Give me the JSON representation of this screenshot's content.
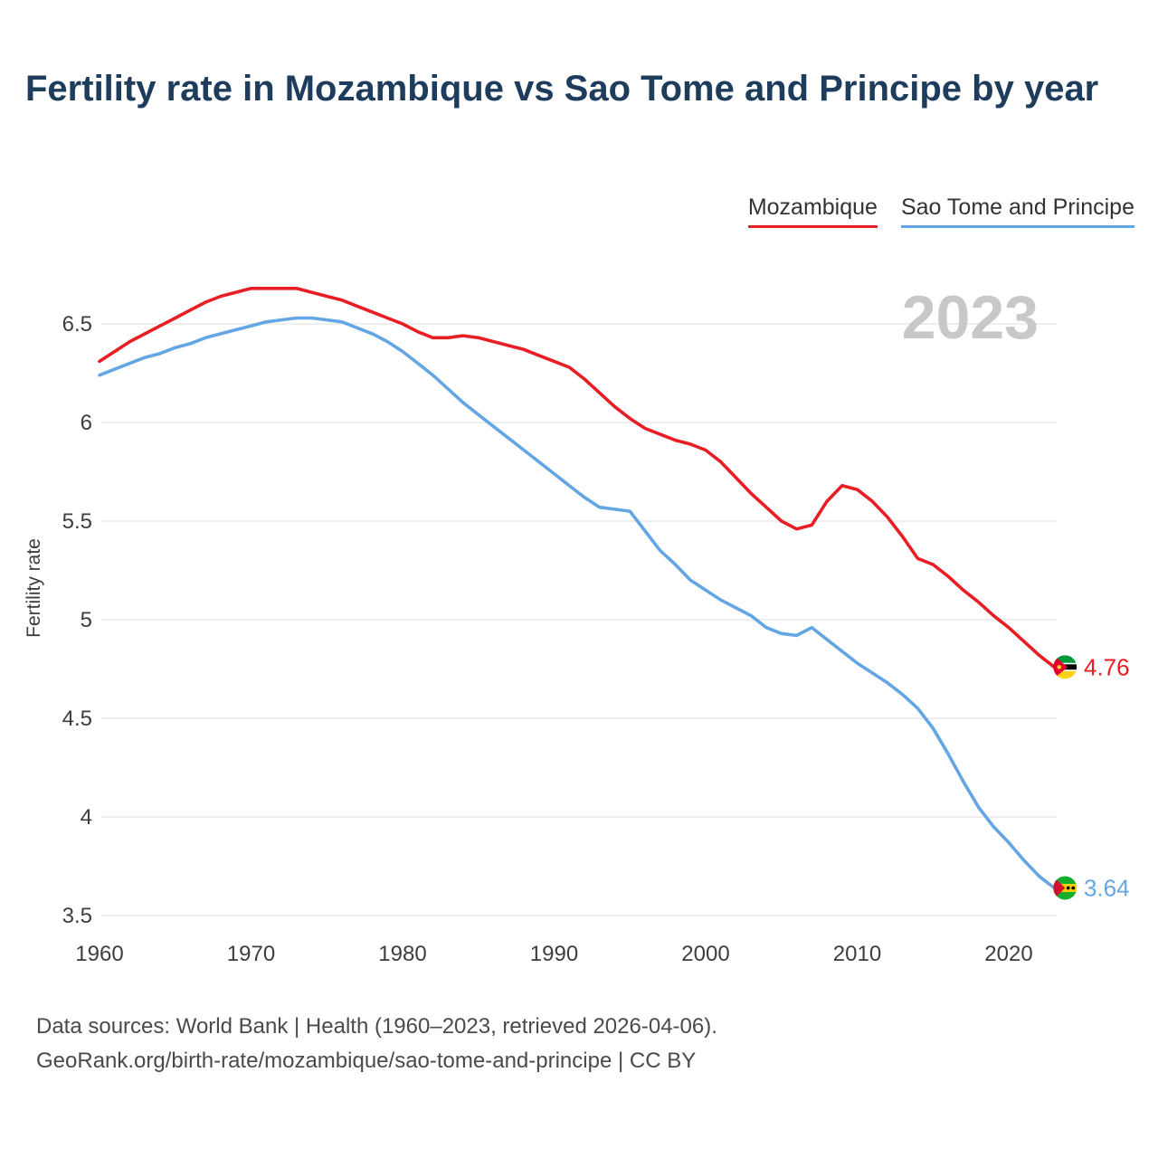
{
  "title": "Fertility rate in Mozambique vs Sao Tome and Principe by year",
  "watermark": "2023",
  "legend": {
    "items": [
      {
        "label": "Mozambique",
        "color": "#e81e25"
      },
      {
        "label": "Sao Tome and Principe",
        "color": "#64a6e3"
      }
    ]
  },
  "footer": {
    "line1": "Data sources: World Bank | Health (1960–2023, retrieved 2026-04-06).",
    "line2": "GeoRank.org/birth-rate/mozambique/sao-tome-and-principe | CC BY"
  },
  "chart_data": {
    "type": "line",
    "title": "Fertility rate in Mozambique vs Sao Tome and Principe by year",
    "xlabel": "",
    "ylabel": "Fertility rate",
    "ylim": [
      3.35,
      6.85
    ],
    "xlim": [
      1958,
      2026
    ],
    "yticks": [
      6.5,
      6,
      5.5,
      5,
      4.5,
      4,
      3.5
    ],
    "xticks": [
      1960,
      1970,
      1980,
      1990,
      2000,
      2010,
      2020
    ],
    "grid": "horizontal",
    "legend_position": "top-right",
    "years": [
      1960,
      1961,
      1962,
      1963,
      1964,
      1965,
      1966,
      1967,
      1968,
      1969,
      1970,
      1971,
      1972,
      1973,
      1974,
      1975,
      1976,
      1977,
      1978,
      1979,
      1980,
      1981,
      1982,
      1983,
      1984,
      1985,
      1986,
      1987,
      1988,
      1989,
      1990,
      1991,
      1992,
      1993,
      1994,
      1995,
      1996,
      1997,
      1998,
      1999,
      2000,
      2001,
      2002,
      2003,
      2004,
      2005,
      2006,
      2007,
      2008,
      2009,
      2010,
      2011,
      2012,
      2013,
      2014,
      2015,
      2016,
      2017,
      2018,
      2019,
      2020,
      2021,
      2022,
      2023
    ],
    "series": [
      {
        "name": "Mozambique",
        "color": "#e81e25",
        "flag": "mozambique-flag",
        "end_label": "4.76",
        "values": [
          6.31,
          6.36,
          6.41,
          6.45,
          6.49,
          6.53,
          6.57,
          6.61,
          6.64,
          6.66,
          6.68,
          6.68,
          6.68,
          6.68,
          6.66,
          6.64,
          6.62,
          6.59,
          6.56,
          6.53,
          6.5,
          6.46,
          6.43,
          6.43,
          6.44,
          6.43,
          6.41,
          6.39,
          6.37,
          6.34,
          6.31,
          6.28,
          6.22,
          6.15,
          6.08,
          6.02,
          5.97,
          5.94,
          5.91,
          5.89,
          5.86,
          5.8,
          5.72,
          5.64,
          5.57,
          5.5,
          5.46,
          5.48,
          5.6,
          5.68,
          5.66,
          5.6,
          5.52,
          5.42,
          5.31,
          5.28,
          5.22,
          5.15,
          5.09,
          5.02,
          4.96,
          4.89,
          4.82,
          4.76
        ]
      },
      {
        "name": "Sao Tome and Principe",
        "color": "#64a6e3",
        "flag": "sao-tome-flag",
        "end_label": "3.64",
        "values": [
          6.24,
          6.27,
          6.3,
          6.33,
          6.35,
          6.38,
          6.4,
          6.43,
          6.45,
          6.47,
          6.49,
          6.51,
          6.52,
          6.53,
          6.53,
          6.52,
          6.51,
          6.48,
          6.45,
          6.41,
          6.36,
          6.3,
          6.24,
          6.17,
          6.1,
          6.04,
          5.98,
          5.92,
          5.86,
          5.8,
          5.74,
          5.68,
          5.62,
          5.57,
          5.56,
          5.55,
          5.45,
          5.35,
          5.28,
          5.2,
          5.15,
          5.1,
          5.06,
          5.02,
          4.96,
          4.93,
          4.92,
          4.96,
          4.9,
          4.84,
          4.78,
          4.73,
          4.68,
          4.62,
          4.55,
          4.45,
          4.32,
          4.18,
          4.05,
          3.95,
          3.87,
          3.78,
          3.7,
          3.64
        ]
      }
    ]
  }
}
